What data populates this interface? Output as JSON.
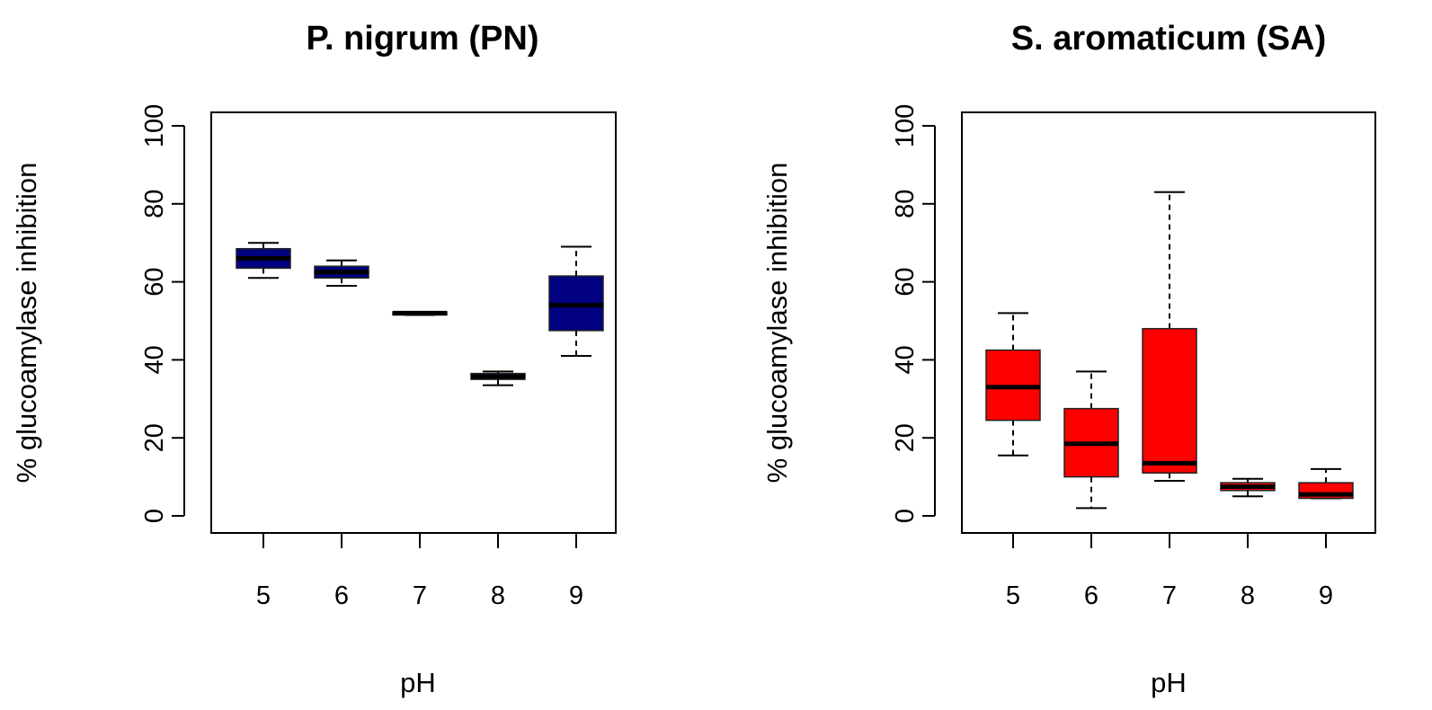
{
  "chart_data": [
    {
      "type": "box",
      "title": "P. nigrum (PN)",
      "xlabel": "pH",
      "ylabel": "% glucoamylase inhibition",
      "ylim": [
        0,
        100
      ],
      "yticks": [
        "0",
        "20",
        "40",
        "60",
        "80",
        "100"
      ],
      "categories": [
        "5",
        "6",
        "7",
        "8",
        "9"
      ],
      "color": "#000080",
      "boxes": [
        {
          "category": "5",
          "whisker_low": 61,
          "q1": 63.5,
          "median": 66,
          "q3": 68.5,
          "whisker_high": 70
        },
        {
          "category": "6",
          "whisker_low": 59,
          "q1": 61,
          "median": 62.5,
          "q3": 64,
          "whisker_high": 65.5
        },
        {
          "category": "7",
          "whisker_low": 51.5,
          "q1": 51.5,
          "median": 52,
          "q3": 52.3,
          "whisker_high": 52.3
        },
        {
          "category": "8",
          "whisker_low": 33.5,
          "q1": 35,
          "median": 35.7,
          "q3": 36.5,
          "whisker_high": 37
        },
        {
          "category": "9",
          "whisker_low": 41,
          "q1": 47.5,
          "median": 54,
          "q3": 61.5,
          "whisker_high": 69
        }
      ]
    },
    {
      "type": "box",
      "title": "S. aromaticum (SA)",
      "xlabel": "pH",
      "ylabel": "% glucoamylase inhibition",
      "ylim": [
        0,
        100
      ],
      "yticks": [
        "0",
        "20",
        "40",
        "60",
        "80",
        "100"
      ],
      "categories": [
        "5",
        "6",
        "7",
        "8",
        "9"
      ],
      "color": "#ff0000",
      "boxes": [
        {
          "category": "5",
          "whisker_low": 15.5,
          "q1": 24.5,
          "median": 33,
          "q3": 42.5,
          "whisker_high": 52
        },
        {
          "category": "6",
          "whisker_low": 2,
          "q1": 10,
          "median": 18.5,
          "q3": 27.5,
          "whisker_high": 37
        },
        {
          "category": "7",
          "whisker_low": 9,
          "q1": 11,
          "median": 13.5,
          "q3": 48,
          "whisker_high": 83
        },
        {
          "category": "8",
          "whisker_low": 5,
          "q1": 6.5,
          "median": 7.5,
          "q3": 8.5,
          "whisker_high": 9.5
        },
        {
          "category": "9",
          "whisker_low": 4.5,
          "q1": 4.5,
          "median": 5.5,
          "q3": 8.5,
          "whisker_high": 12
        }
      ]
    }
  ]
}
